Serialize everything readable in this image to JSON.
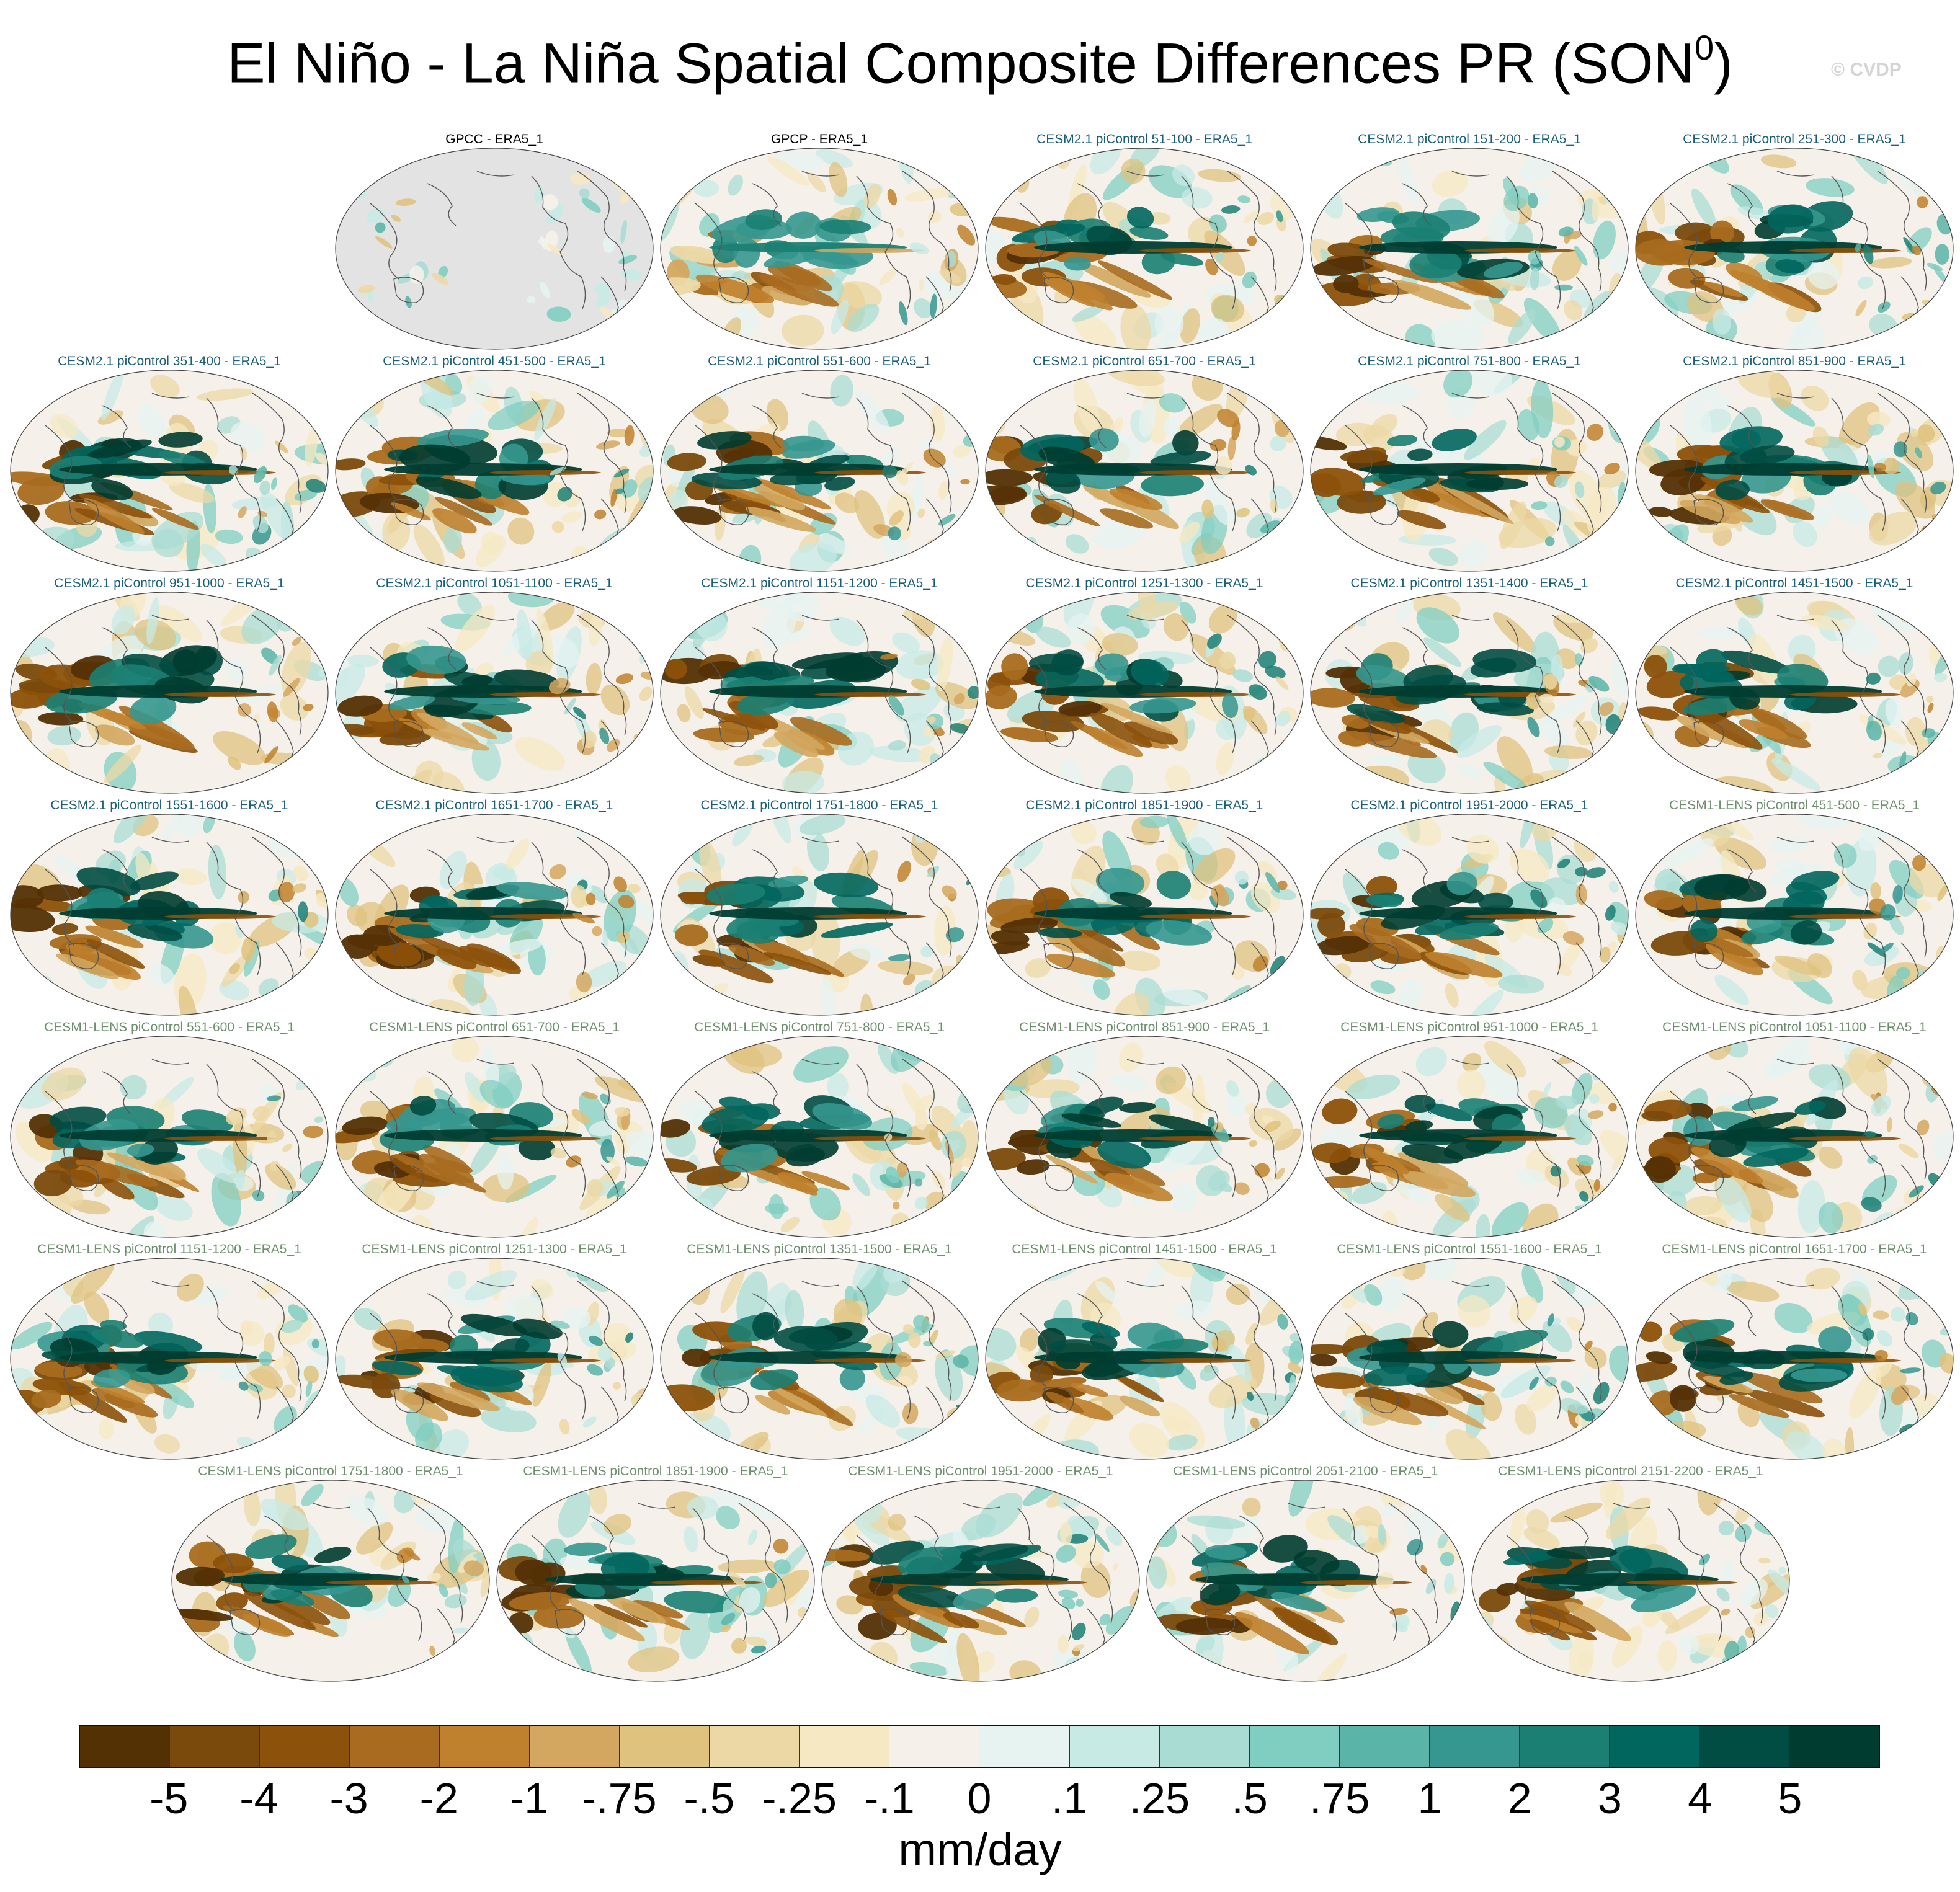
{
  "figure": {
    "title": "El Niño - La Niña Spatial Composite Differences PR (SON",
    "title_superscript": "0",
    "title_suffix": ")",
    "watermark": "© CVDP"
  },
  "chart_data": {
    "type": "heatmap",
    "title": "El Niño - La Niña Spatial Composite Differences PR (SON0)",
    "variable": "PR",
    "season": "SON0",
    "units": "mm/day",
    "colorbar": {
      "levels": [
        "-5",
        "-4",
        "-3",
        "-2",
        "-1",
        "-.75",
        "-.5",
        "-.25",
        "-.1",
        "0",
        ".1",
        ".25",
        ".5",
        ".75",
        "1",
        "2",
        "3",
        "4",
        "5"
      ],
      "colors": [
        "#543005",
        "#7a4a0c",
        "#8c510a",
        "#a86b1f",
        "#bf812d",
        "#d3a75f",
        "#dfc27d",
        "#ecd8a5",
        "#f6e8c3",
        "#f5f1ea",
        "#e6f3f1",
        "#c7eae5",
        "#a9dcd3",
        "#80cdc1",
        "#5ab4a7",
        "#35978f",
        "#1b7f73",
        "#01665e",
        "#014d43",
        "#003c30"
      ]
    },
    "panels": [
      {
        "label": "GPCC - ERA5_1",
        "group": "obs",
        "land_only": true
      },
      {
        "label": "GPCP - ERA5_1",
        "group": "obs",
        "land_only": false
      },
      {
        "label": "CESM2.1 piControl 51-100 - ERA5_1",
        "group": "cesm2"
      },
      {
        "label": "CESM2.1 piControl 151-200 - ERA5_1",
        "group": "cesm2"
      },
      {
        "label": "CESM2.1 piControl 251-300 - ERA5_1",
        "group": "cesm2"
      },
      {
        "label": "CESM2.1 piControl 351-400 - ERA5_1",
        "group": "cesm2"
      },
      {
        "label": "CESM2.1 piControl 451-500 - ERA5_1",
        "group": "cesm2"
      },
      {
        "label": "CESM2.1 piControl 551-600 - ERA5_1",
        "group": "cesm2"
      },
      {
        "label": "CESM2.1 piControl 651-700 - ERA5_1",
        "group": "cesm2"
      },
      {
        "label": "CESM2.1 piControl 751-800 - ERA5_1",
        "group": "cesm2"
      },
      {
        "label": "CESM2.1 piControl 851-900 - ERA5_1",
        "group": "cesm2"
      },
      {
        "label": "CESM2.1 piControl 951-1000 - ERA5_1",
        "group": "cesm2"
      },
      {
        "label": "CESM2.1 piControl 1051-1100 - ERA5_1",
        "group": "cesm2"
      },
      {
        "label": "CESM2.1 piControl 1151-1200 - ERA5_1",
        "group": "cesm2"
      },
      {
        "label": "CESM2.1 piControl 1251-1300 - ERA5_1",
        "group": "cesm2"
      },
      {
        "label": "CESM2.1 piControl 1351-1400 - ERA5_1",
        "group": "cesm2"
      },
      {
        "label": "CESM2.1 piControl 1451-1500 - ERA5_1",
        "group": "cesm2"
      },
      {
        "label": "CESM2.1 piControl 1551-1600 - ERA5_1",
        "group": "cesm2"
      },
      {
        "label": "CESM2.1 piControl 1651-1700 - ERA5_1",
        "group": "cesm2"
      },
      {
        "label": "CESM2.1 piControl 1751-1800 - ERA5_1",
        "group": "cesm2"
      },
      {
        "label": "CESM2.1 piControl 1851-1900 - ERA5_1",
        "group": "cesm2"
      },
      {
        "label": "CESM2.1 piControl 1951-2000 - ERA5_1",
        "group": "cesm2"
      },
      {
        "label": "CESM1-LENS piControl 451-500 - ERA5_1",
        "group": "cesm1"
      },
      {
        "label": "CESM1-LENS piControl 551-600 - ERA5_1",
        "group": "cesm1"
      },
      {
        "label": "CESM1-LENS piControl 651-700 - ERA5_1",
        "group": "cesm1"
      },
      {
        "label": "CESM1-LENS piControl 751-800 - ERA5_1",
        "group": "cesm1"
      },
      {
        "label": "CESM1-LENS piControl 851-900 - ERA5_1",
        "group": "cesm1"
      },
      {
        "label": "CESM1-LENS piControl 951-1000 - ERA5_1",
        "group": "cesm1"
      },
      {
        "label": "CESM1-LENS piControl 1051-1100 - ERA5_1",
        "group": "cesm1"
      },
      {
        "label": "CESM1-LENS piControl 1151-1200 - ERA5_1",
        "group": "cesm1"
      },
      {
        "label": "CESM1-LENS piControl 1251-1300 - ERA5_1",
        "group": "cesm1"
      },
      {
        "label": "CESM1-LENS piControl 1351-1500 - ERA5_1",
        "group": "cesm1"
      },
      {
        "label": "CESM1-LENS piControl 1451-1500 - ERA5_1",
        "group": "cesm1"
      },
      {
        "label": "CESM1-LENS piControl 1551-1600 - ERA5_1",
        "group": "cesm1"
      },
      {
        "label": "CESM1-LENS piControl 1651-1700 - ERA5_1",
        "group": "cesm1"
      },
      {
        "label": "CESM1-LENS piControl 1751-1800 - ERA5_1",
        "group": "cesm1"
      },
      {
        "label": "CESM1-LENS piControl 1851-1900 - ERA5_1",
        "group": "cesm1"
      },
      {
        "label": "CESM1-LENS piControl 1951-2000 - ERA5_1",
        "group": "cesm1"
      },
      {
        "label": "CESM1-LENS piControl 2051-2100 - ERA5_1",
        "group": "cesm1"
      },
      {
        "label": "CESM1-LENS piControl 2151-2200 - ERA5_1",
        "group": "cesm1"
      }
    ]
  },
  "colors": {
    "obs_title": "#000000",
    "cesm2_title": "#1a5f7a",
    "cesm1_title": "#6e8f6e",
    "map_background": "#f5f1ea",
    "missing_data": "#e3e3e3",
    "coastline": "#555555"
  }
}
